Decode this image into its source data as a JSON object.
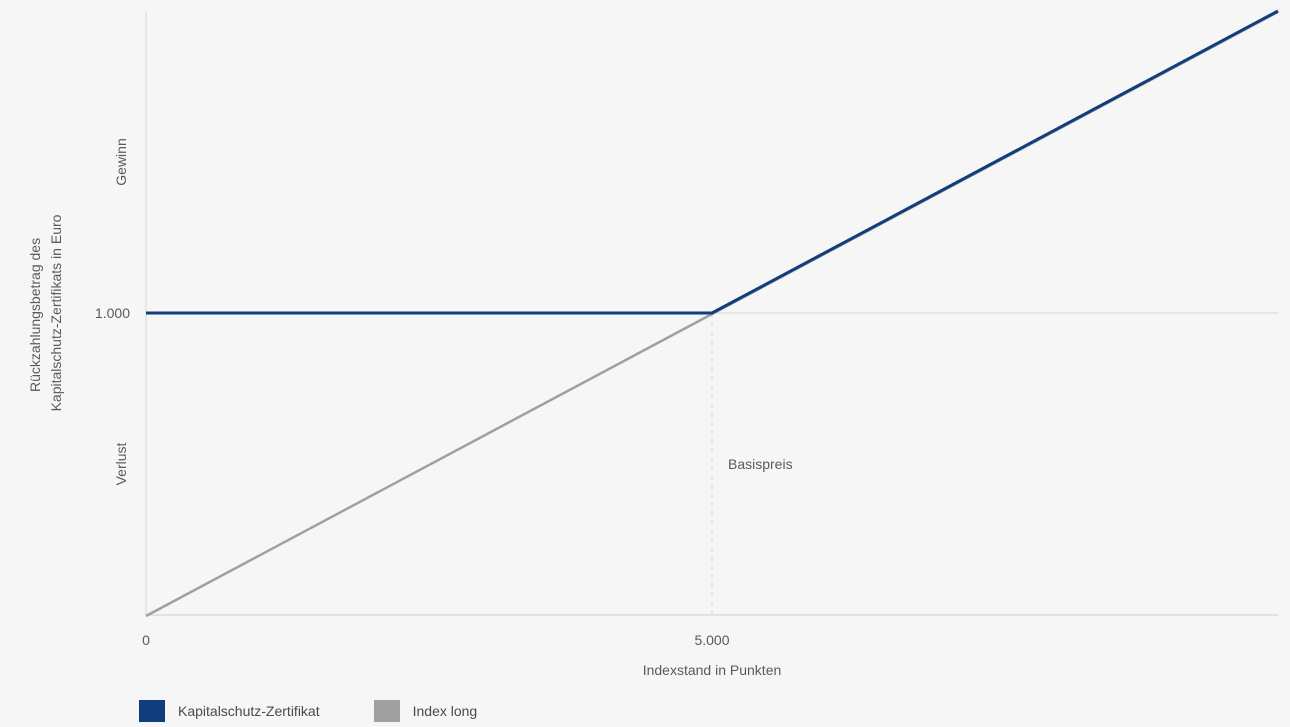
{
  "chart_data": {
    "type": "line",
    "xlabel": "Indexstand in Punkten",
    "ylabel_lines": [
      "Rückzahlungsbetrag des",
      "Kapitalschutz-Zertifikats in Euro"
    ],
    "xlim": [
      0,
      10000
    ],
    "ylim": [
      0,
      2000
    ],
    "x_ticks": [
      {
        "value": 0,
        "label": "0"
      },
      {
        "value": 5000,
        "label": "5.000"
      }
    ],
    "y_ticks": [
      {
        "value": 1000,
        "label": "1.000"
      }
    ],
    "y_region_labels": [
      {
        "value": 1500,
        "label": "Gewinn"
      },
      {
        "value": 500,
        "label": "Verlust"
      }
    ],
    "annotations": [
      {
        "x": 5000,
        "y": 500,
        "text": "Basispreis"
      }
    ],
    "grid": "horizontal",
    "series": [
      {
        "name": "Kapitalschutz-Zertifikat",
        "color": "#0f3d7e",
        "points": [
          [
            0,
            1000
          ],
          [
            5000,
            1000
          ],
          [
            10000,
            2000
          ]
        ]
      },
      {
        "name": "Index long",
        "color": "#a0a0a0",
        "points": [
          [
            0,
            0
          ],
          [
            5000,
            1000
          ],
          [
            10000,
            2000
          ]
        ]
      }
    ],
    "legend_position": "bottom-left"
  }
}
